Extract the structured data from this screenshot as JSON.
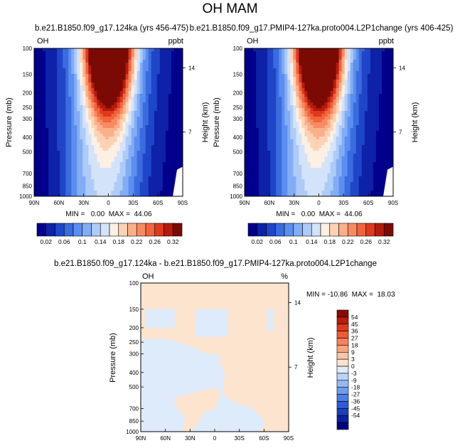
{
  "main_title": "OH MAM",
  "colors": {
    "abs_scale": [
      "#00008c",
      "#0d22a8",
      "#1f45c8",
      "#3a6bdf",
      "#5a8ef0",
      "#82adf5",
      "#aecbf8",
      "#d3e3fa",
      "#fbf0e3",
      "#fdd2b4",
      "#fbb08a",
      "#f88a62",
      "#f1643d",
      "#dd3a1d",
      "#b51b0c",
      "#7b0a05"
    ],
    "diff_scale": [
      "#000080",
      "#0d1fa0",
      "#1c3ec0",
      "#2e5bda",
      "#4c7ee8",
      "#6f9cf0",
      "#96b8f5",
      "#bdd2f8",
      "#deebfb",
      "#fde4cf",
      "#fcc6a5",
      "#fba57f",
      "#f8825a",
      "#f25a33",
      "#e0381a",
      "#b81c0a",
      "#8a0a04"
    ],
    "panel_base": "#fde4cf",
    "panel_patch": "#deebfb"
  },
  "chart_data": [
    {
      "type": "heatmap",
      "title": "b.e21.B1850.f09_g17.124ka (yrs 456-475)",
      "variable": "OH",
      "units": "ppbt",
      "ylabel": "Pressure (mb)",
      "y2label": "Height (km)",
      "x_ticks": [
        "90N",
        "60N",
        "30N",
        "0",
        "30S",
        "60S",
        "90S"
      ],
      "y_ticks": [
        "100",
        "150",
        "200",
        "250",
        "300",
        "400",
        "500",
        "700",
        "850",
        "1000"
      ],
      "y2_ticks": [
        "14",
        "7"
      ],
      "minmax_label": "MIN =   0.00  MAX =  44.06",
      "min": 0.0,
      "max": 44.06,
      "colorbar_labels": [
        "0.02",
        "0.06",
        "0.1",
        "0.14",
        "0.18",
        "0.22",
        "0.26",
        "0.32"
      ]
    },
    {
      "type": "heatmap",
      "title": "b.e21.B1850.f09_g17.PMIP4-127ka.proto004.L2P1change (yrs 406-425)",
      "variable": "OH",
      "units": "ppbt",
      "ylabel": "Pressure (mb)",
      "y2label": "Height (km)",
      "x_ticks": [
        "90N",
        "60N",
        "30N",
        "0",
        "30S",
        "60S",
        "90S"
      ],
      "y_ticks": [
        "100",
        "150",
        "200",
        "250",
        "300",
        "400",
        "500",
        "700",
        "850",
        "1000"
      ],
      "y2_ticks": [
        "14",
        "7"
      ],
      "minmax_label": "MIN =   0.00  MAX =  44.06",
      "min": 0.0,
      "max": 44.06,
      "colorbar_labels": [
        "0.02",
        "0.06",
        "0.1",
        "0.14",
        "0.18",
        "0.22",
        "0.26",
        "0.32"
      ]
    },
    {
      "type": "heatmap",
      "title": "b.e21.B1850.f09_g17.124ka - b.e21.B1850.f09_g17.PMIP4-127ka.proto004.L2P1change",
      "variable": "OH",
      "units": "%",
      "ylabel": "Pressure (mb)",
      "y2label": "Height (km)",
      "x_ticks": [
        "90N",
        "60N",
        "30N",
        "0",
        "30S",
        "60S",
        "90S"
      ],
      "y_ticks": [
        "100",
        "150",
        "200",
        "250",
        "300",
        "400",
        "500",
        "700",
        "850",
        "1000"
      ],
      "y2_ticks": [
        "14",
        "7"
      ],
      "minmax_label": "MIN = -10.86  MAX =  18.03",
      "min": -10.86,
      "max": 18.03,
      "colorbar_labels": [
        "54",
        "45",
        "36",
        "27",
        "18",
        "9",
        "3",
        "0",
        "-3",
        "-9",
        "-18",
        "-27",
        "-36",
        "-45",
        "-54"
      ]
    }
  ]
}
